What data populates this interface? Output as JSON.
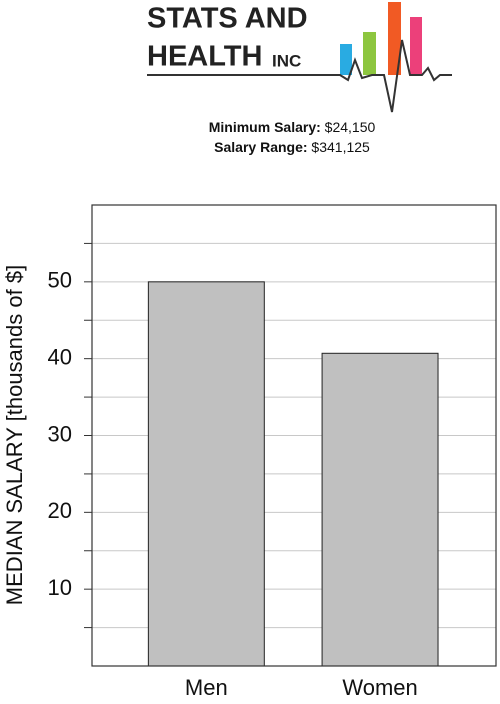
{
  "header": {
    "logo_line1": "STATS AND",
    "logo_line2": "HEALTH",
    "logo_suffix": "INC",
    "info": [
      {
        "label": "Minimum Salary:",
        "value": "$24,150"
      },
      {
        "label": "Salary Range:",
        "value": "$341,125"
      }
    ]
  },
  "chart_data": {
    "type": "bar",
    "y_label": "MEDIAN SALARY [thousands of $]",
    "categories": [
      "Men",
      "Women"
    ],
    "values": [
      50,
      40.7
    ],
    "color": "#c0c0c0",
    "ylim": [
      0,
      60
    ],
    "yticks": [
      10,
      20,
      30,
      40,
      50
    ],
    "minor_yticks": [
      5,
      15,
      25,
      35,
      45,
      55
    ],
    "grid": true
  }
}
